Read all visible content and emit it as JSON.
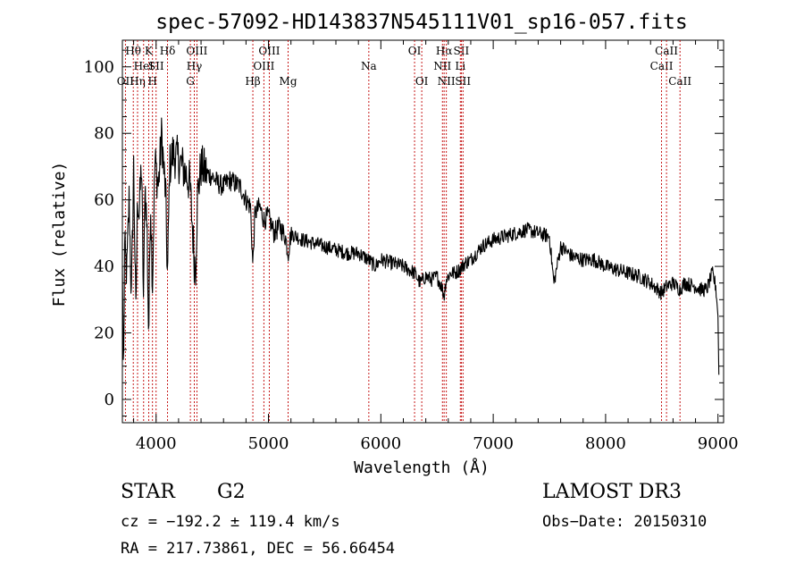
{
  "chart_data": {
    "type": "line",
    "title": "spec-57092-HD143837N545111V01_sp16-057.fits",
    "xlabel": "Wavelength (Å)",
    "ylabel": "Flux (relative)",
    "xlim": [
      3700,
      9050
    ],
    "ylim": [
      -7,
      108
    ],
    "x_ticks": [
      4000,
      5000,
      6000,
      7000,
      8000,
      9000
    ],
    "y_ticks": [
      0,
      20,
      40,
      60,
      80,
      100
    ],
    "grid": false,
    "legend": "none",
    "spectrum_anchors": {
      "x": [
        3700,
        3710,
        3720,
        3740,
        3760,
        3780,
        3800,
        3820,
        3835,
        3850,
        3870,
        3889,
        3900,
        3920,
        3934,
        3950,
        3968,
        3990,
        4020,
        4050,
        4070,
        4085,
        4102,
        4120,
        4150,
        4200,
        4250,
        4300,
        4330,
        4340,
        4352,
        4370,
        4400,
        4450,
        4500,
        4550,
        4600,
        4650,
        4700,
        4750,
        4800,
        4840,
        4861,
        4880,
        4920,
        4960,
        5000,
        5050,
        5100,
        5150,
        5175,
        5200,
        5300,
        5400,
        5500,
        5600,
        5700,
        5800,
        5890,
        5950,
        6000,
        6100,
        6200,
        6300,
        6350,
        6400,
        6450,
        6500,
        6540,
        6563,
        6580,
        6620,
        6660,
        6700,
        6750,
        6800,
        6850,
        6900,
        7000,
        7100,
        7200,
        7300,
        7400,
        7500,
        7540,
        7600,
        7700,
        7800,
        7900,
        8000,
        8100,
        8200,
        8300,
        8400,
        8498,
        8542,
        8600,
        8662,
        8700,
        8800,
        8850,
        8900,
        8950,
        8980,
        9000,
        9010
      ],
      "y": [
        40,
        5,
        45,
        38,
        60,
        30,
        70,
        25,
        62,
        55,
        72,
        28,
        66,
        50,
        18,
        62,
        35,
        72,
        64,
        80,
        68,
        62,
        35,
        70,
        74,
        72,
        69,
        65,
        48,
        42,
        40,
        62,
        70,
        68,
        67,
        65,
        64,
        66,
        65,
        64,
        60,
        58,
        40,
        56,
        58,
        54,
        55,
        50,
        52,
        49,
        44,
        50,
        48,
        47,
        46,
        45,
        44,
        44,
        42,
        40,
        42,
        41,
        40,
        38,
        35,
        37,
        36,
        37,
        34,
        31,
        36,
        38,
        38,
        39,
        41,
        42,
        44,
        46,
        48,
        49,
        50,
        51,
        50,
        49,
        35,
        46,
        43,
        42,
        42,
        40,
        39,
        38,
        37,
        35,
        32,
        34,
        35,
        33,
        35,
        34,
        33,
        33,
        38,
        34,
        25,
        3
      ]
    },
    "line_markers": [
      {
        "label": "OII",
        "wave": 3727,
        "row": 3
      },
      {
        "label": "Hθ",
        "wave": 3797,
        "row": 1
      },
      {
        "label": "Hη",
        "wave": 3835,
        "row": 3
      },
      {
        "label": "HeI",
        "wave": 3889,
        "row": 2
      },
      {
        "label": "K",
        "wave": 3934,
        "row": 1
      },
      {
        "label": "H",
        "wave": 3968,
        "row": 3
      },
      {
        "label": "SII",
        "wave": 4000,
        "row": 2
      },
      {
        "label": "Hδ",
        "wave": 4102,
        "row": 1
      },
      {
        "label": "G",
        "wave": 4305,
        "row": 3
      },
      {
        "label": "Hγ",
        "wave": 4340,
        "row": 2
      },
      {
        "label": "OIII",
        "wave": 4363,
        "row": 1
      },
      {
        "label": "Hβ",
        "wave": 4861,
        "row": 3
      },
      {
        "label": "OIII",
        "wave": 4959,
        "row": 2
      },
      {
        "label": "OIII",
        "wave": 5007,
        "row": 1
      },
      {
        "label": "Mg",
        "wave": 5175,
        "row": 3
      },
      {
        "label": "Na",
        "wave": 5893,
        "row": 2
      },
      {
        "label": "OI",
        "wave": 6300,
        "row": 1
      },
      {
        "label": "OI",
        "wave": 6364,
        "row": 3
      },
      {
        "label": "NII",
        "wave": 6548,
        "row": 2
      },
      {
        "label": "Hα",
        "wave": 6563,
        "row": 1
      },
      {
        "label": "NII",
        "wave": 6583,
        "row": 3
      },
      {
        "label": "Li",
        "wave": 6707,
        "row": 2
      },
      {
        "label": "SII",
        "wave": 6716,
        "row": 1
      },
      {
        "label": "SII",
        "wave": 6731,
        "row": 3
      },
      {
        "label": "CaII",
        "wave": 8498,
        "row": 2
      },
      {
        "label": "CaII",
        "wave": 8542,
        "row": 1
      },
      {
        "label": "CaII",
        "wave": 8662,
        "row": 3
      }
    ]
  },
  "info": {
    "object_class": "STAR",
    "subclass": "G2",
    "survey": "LAMOST DR3",
    "redshift": "cz = −192.2 ± 119.4 km/s",
    "obs_date": "Obs−Date: 20150310",
    "coords": "RA = 217.73861, DEC =  56.66454"
  },
  "colors": {
    "spectrum": "#000000",
    "marker_line": "#c00000",
    "axes": "#000000",
    "background": "#ffffff"
  }
}
